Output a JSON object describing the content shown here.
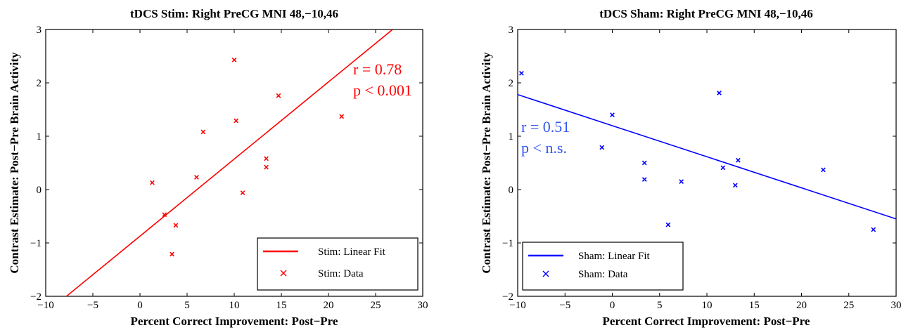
{
  "chart_data": [
    {
      "type": "scatter",
      "title": "tDCS Stim: Right PreCG MNI 48,−10,46",
      "xlabel": "Percent Correct Improvement: Post−Pre",
      "ylabel": "Contrast Estimate: Post−Pre Brain Activity",
      "xlim": [
        -10,
        30
      ],
      "ylim": [
        -2,
        3
      ],
      "xticks": [
        -10,
        -5,
        0,
        5,
        10,
        15,
        20,
        25,
        30
      ],
      "yticks": [
        -2,
        -1,
        0,
        1,
        2,
        3
      ],
      "xtick_labels": [
        "−10",
        "−5",
        "0",
        "5",
        "10",
        "15",
        "20",
        "25",
        "30"
      ],
      "ytick_labels": [
        "−2",
        "−1",
        "0",
        "1",
        "2",
        "3"
      ],
      "color": "#ff0000",
      "legend_position": "bottom-right",
      "annotation": {
        "r": "r = 0.78",
        "p": "p < 0.001"
      },
      "series": [
        {
          "name": "Stim: Data",
          "marker": "x",
          "points": [
            [
              1.3,
              0.13
            ],
            [
              2.6,
              -0.47
            ],
            [
              3.4,
              -1.21
            ],
            [
              3.8,
              -0.67
            ],
            [
              6.0,
              0.23
            ],
            [
              6.7,
              1.08
            ],
            [
              10.0,
              2.43
            ],
            [
              10.2,
              1.29
            ],
            [
              10.9,
              -0.06
            ],
            [
              13.4,
              0.58
            ],
            [
              13.4,
              0.42
            ],
            [
              14.7,
              1.76
            ],
            [
              21.4,
              1.37
            ]
          ]
        },
        {
          "name": "Stim: Linear Fit",
          "marker": "line",
          "line": [
            [
              -7.8,
              -2.0
            ],
            [
              26.8,
              3.0
            ]
          ]
        }
      ]
    },
    {
      "type": "scatter",
      "title": "tDCS Sham: Right PreCG MNI 48,−10,46",
      "xlabel": "Percent Correct Improvement: Post−Pre",
      "ylabel": "Contrast Estimate: Post−Pre Brain Activity",
      "xlim": [
        -10,
        30
      ],
      "ylim": [
        -2,
        3
      ],
      "xticks": [
        -10,
        -5,
        0,
        5,
        10,
        15,
        20,
        25,
        30
      ],
      "yticks": [
        -2,
        -1,
        0,
        1,
        2,
        3
      ],
      "xtick_labels": [
        "−10",
        "−5",
        "0",
        "5",
        "10",
        "15",
        "20",
        "25",
        "30"
      ],
      "ytick_labels": [
        "−2",
        "−1",
        "0",
        "1",
        "2",
        "3"
      ],
      "color": "#0000ff",
      "legend_position": "bottom-left",
      "annotation": {
        "r": "r = 0.51",
        "p": "p < n.s."
      },
      "series": [
        {
          "name": "Sham: Data",
          "marker": "x",
          "points": [
            [
              -9.6,
              2.18
            ],
            [
              -1.1,
              0.79
            ],
            [
              0.0,
              1.4
            ],
            [
              3.4,
              0.5
            ],
            [
              3.4,
              0.19
            ],
            [
              5.9,
              -0.66
            ],
            [
              7.3,
              0.15
            ],
            [
              11.3,
              1.81
            ],
            [
              11.7,
              0.41
            ],
            [
              13.0,
              0.08
            ],
            [
              13.3,
              0.55
            ],
            [
              22.3,
              0.37
            ],
            [
              27.6,
              -0.75
            ]
          ]
        },
        {
          "name": "Sham: Linear Fit",
          "marker": "line",
          "line": [
            [
              -10,
              1.78
            ],
            [
              30,
              -0.55
            ]
          ]
        }
      ]
    }
  ]
}
